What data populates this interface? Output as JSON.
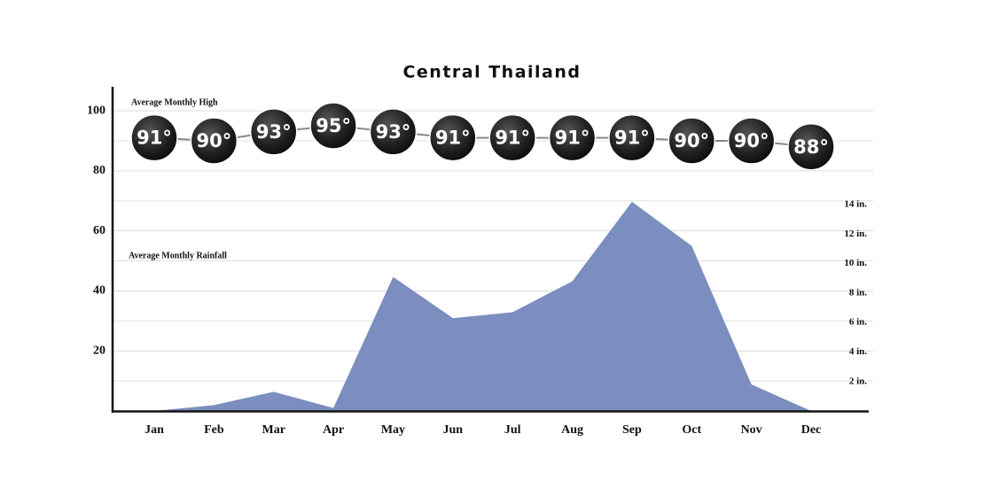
{
  "chart_data": {
    "type": "combo",
    "title": "Central Thailand",
    "categories": [
      "Jan",
      "Feb",
      "Mar",
      "Apr",
      "May",
      "Jun",
      "Jul",
      "Aug",
      "Sep",
      "Oct",
      "Nov",
      "Dec"
    ],
    "series": [
      {
        "name": "Average Monthly High",
        "type": "line",
        "color": "#2b2b2b",
        "axis": "y",
        "values": [
          91,
          90,
          93,
          95,
          93,
          91,
          91,
          91,
          91,
          90,
          90,
          88
        ],
        "value_labels": [
          "91°",
          "90°",
          "93°",
          "95°",
          "93°",
          "91°",
          "91°",
          "91°",
          "91°",
          "90°",
          "90°",
          "88°"
        ]
      },
      {
        "name": "Average Monthly Rainfall",
        "type": "area",
        "color": "#7b8ebf",
        "axis": "y2",
        "values": [
          0,
          0.4,
          1.3,
          0.2,
          9.1,
          6.3,
          6.7,
          8.8,
          14.2,
          11.2,
          1.8,
          0
        ]
      }
    ],
    "ylim": [
      0,
      108
    ],
    "yticks": [
      20,
      40,
      60,
      80,
      100
    ],
    "minor_yticks": [
      10,
      30,
      50,
      70,
      90
    ],
    "y2lim": [
      0,
      22
    ],
    "y2ticks": [
      {
        "value": 2,
        "label": "2 in."
      },
      {
        "value": 4,
        "label": "4 in."
      },
      {
        "value": 6,
        "label": "6 in."
      },
      {
        "value": 8,
        "label": "8 in."
      },
      {
        "value": 10,
        "label": "10 in."
      },
      {
        "value": 12,
        "label": "12 in."
      },
      {
        "value": 14,
        "label": "14 in."
      }
    ],
    "grid": true
  }
}
